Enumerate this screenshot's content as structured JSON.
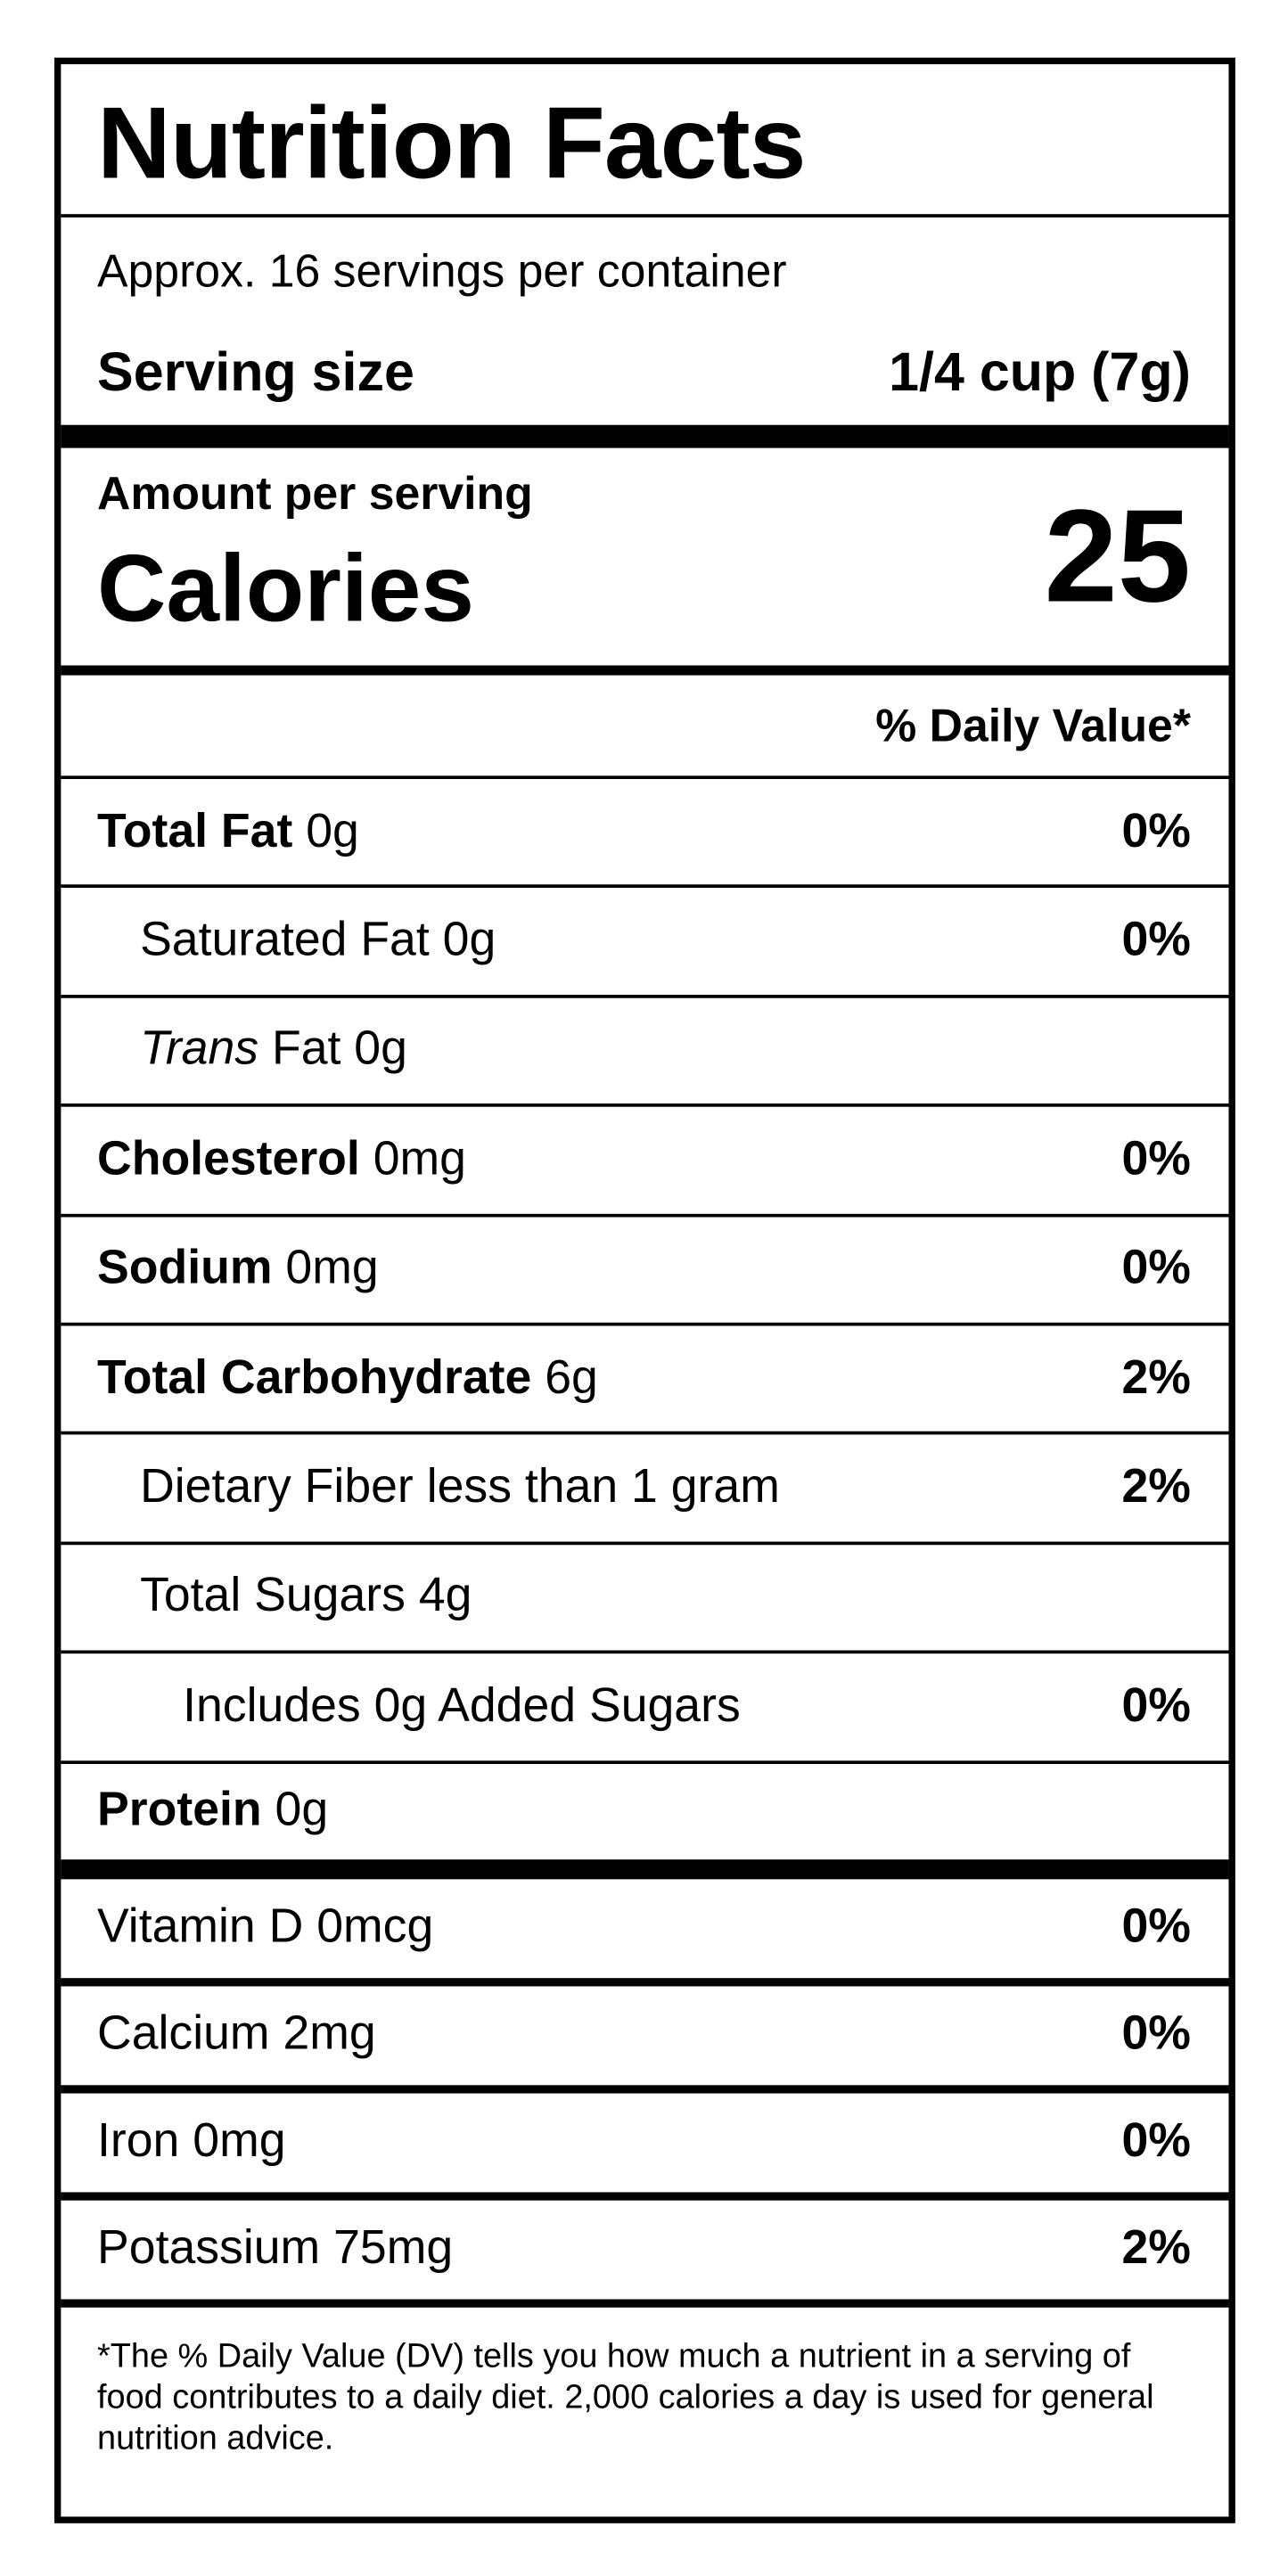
{
  "title": "Nutrition Facts",
  "servings": "Approx. 16 servings per container",
  "serving_size": {
    "label": "Serving size",
    "value": "1/4 cup (7g)"
  },
  "amount_per_serving": "Amount per serving",
  "calories": {
    "label": "Calories",
    "value": "25"
  },
  "dv_header": "% Daily Value*",
  "nutrients": [
    {
      "name": "Total Fat",
      "amount": "0g",
      "dv": "0%",
      "bold": true,
      "indent": 0
    },
    {
      "name": "Saturated Fat",
      "amount": "0g",
      "dv": "0%",
      "bold": false,
      "indent": 1
    },
    {
      "name_italic": "Trans",
      "name": "Fat",
      "amount": "0g",
      "bold": false,
      "indent": 1
    },
    {
      "name": "Cholesterol",
      "amount": "0mg",
      "dv": "0%",
      "bold": true,
      "indent": 0
    },
    {
      "name": "Sodium",
      "amount": "0mg",
      "dv": "0%",
      "bold": true,
      "indent": 0
    },
    {
      "name": "Total Carbohydrate",
      "amount": "6g",
      "dv": "2%",
      "bold": true,
      "indent": 0
    },
    {
      "name": "Dietary Fiber",
      "amount": "less than 1 gram",
      "dv": "2%",
      "bold": false,
      "indent": 1
    },
    {
      "name": "Total Sugars",
      "amount": "4g",
      "bold": false,
      "indent": 1
    },
    {
      "name": "Includes 0g Added Sugars",
      "dv": "0%",
      "bold": false,
      "indent": 2
    },
    {
      "name": "Protein",
      "amount": "0g",
      "bold": true,
      "indent": 0
    }
  ],
  "vitamins": [
    {
      "name": "Vitamin D",
      "amount": "0mcg",
      "dv": "0%"
    },
    {
      "name": "Calcium",
      "amount": "2mg",
      "dv": "0%"
    },
    {
      "name": "Iron",
      "amount": "0mg",
      "dv": "0%"
    },
    {
      "name": "Potassium",
      "amount": "75mg",
      "dv": "2%"
    }
  ],
  "footnote": "*The % Daily Value (DV) tells you how much a nutrient in a serving of food contributes to a daily diet. 2,000 calories a day is used for general nutrition advice."
}
